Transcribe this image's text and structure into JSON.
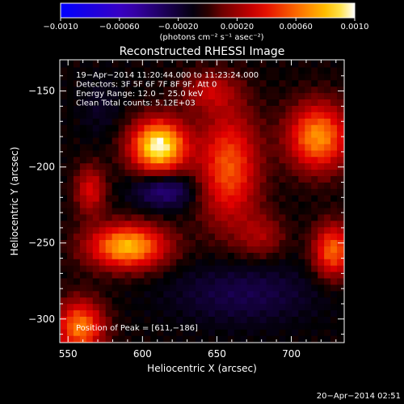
{
  "colorbar": {
    "min": -0.001,
    "max": 0.001,
    "tick_labels": [
      "−0.0010",
      "−0.00060",
      "−0.00020",
      "0.00020",
      "0.00060",
      "0.0010"
    ],
    "tick_values": [
      -0.001,
      -0.0006,
      -0.0002,
      0.0002,
      0.0006,
      0.001
    ],
    "units": "(photons cm⁻² s⁻¹ asec⁻²)",
    "colors": [
      "#0000ff",
      "#3a00c0",
      "#000000",
      "#7a0000",
      "#e00000",
      "#ff7000",
      "#ffd000",
      "#ffffff"
    ]
  },
  "chart_data": {
    "type": "heatmap",
    "title": "Reconstructed RHESSI Image",
    "xlabel": "Heliocentric X (arcsec)",
    "ylabel": "Heliocentric Y (arcsec)",
    "xlim": [
      545,
      735
    ],
    "ylim": [
      -315,
      -130
    ],
    "x_ticks": [
      550,
      600,
      650,
      700
    ],
    "y_ticks": [
      -150,
      -200,
      -250,
      -300
    ],
    "annotations": [
      "19−Apr−2014 11:20:44.000 to 11:23:24.000",
      "Detectors: 3F 5F 6F 7F 8F 9F, Att 0",
      "Energy Range: 12.0 − 25.0 keV",
      "Clean     Total counts: 5.12E+03"
    ],
    "peak_label": "Position of Peak = [611,−186]",
    "peak": {
      "x": 611,
      "y": -186
    },
    "sources": [
      {
        "x": 611,
        "y": -186,
        "sx": 13,
        "sy": 12,
        "amp": 0.00105
      },
      {
        "x": 590,
        "y": -252,
        "sx": 18,
        "sy": 10,
        "amp": 0.00085
      },
      {
        "x": 658,
        "y": -200,
        "sx": 14,
        "sy": 26,
        "amp": 0.0006
      },
      {
        "x": 718,
        "y": -180,
        "sx": 14,
        "sy": 15,
        "amp": 0.00075
      },
      {
        "x": 728,
        "y": -255,
        "sx": 9,
        "sy": 12,
        "amp": 0.00065
      },
      {
        "x": 645,
        "y": -150,
        "sx": 13,
        "sy": 9,
        "amp": 0.0003
      },
      {
        "x": 558,
        "y": -305,
        "sx": 11,
        "sy": 12,
        "amp": 0.0007
      },
      {
        "x": 565,
        "y": -215,
        "sx": 7,
        "sy": 11,
        "amp": 0.0004
      },
      {
        "x": 680,
        "y": -245,
        "sx": 11,
        "sy": 10,
        "amp": 0.00025
      },
      {
        "x": 615,
        "y": -215,
        "sx": 14,
        "sy": 8,
        "amp": -0.00035
      },
      {
        "x": 668,
        "y": -283,
        "sx": 34,
        "sy": 14,
        "amp": -0.0002
      },
      {
        "x": 572,
        "y": -160,
        "sx": 10,
        "sy": 14,
        "amp": -0.0001
      }
    ],
    "baseline": -5e-05
  },
  "footer": {
    "timestamp": "20−Apr−2014 02:51"
  }
}
